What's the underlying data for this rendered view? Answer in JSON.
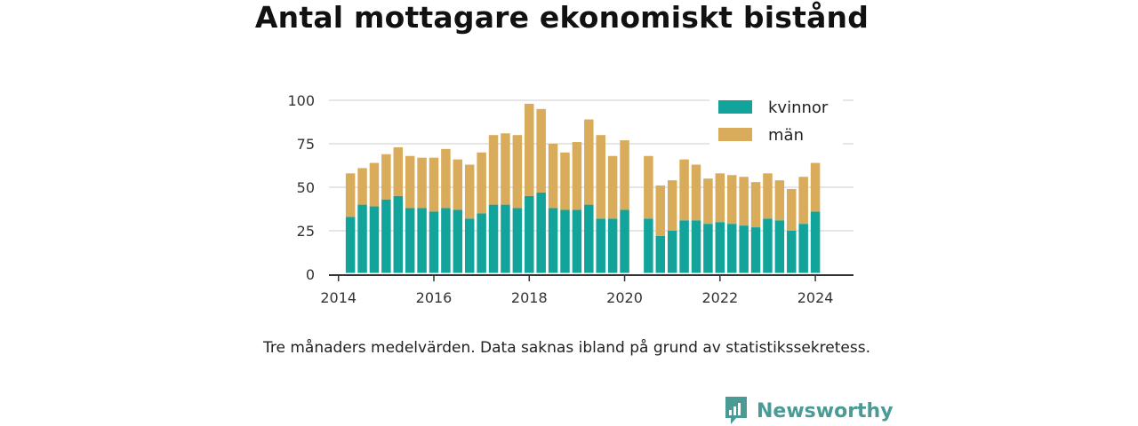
{
  "title": "Antal mottagare ekonomiskt bistånd",
  "note": "Tre månaders medelvärden. Data saknas ibland på grund av statistikssekretess.",
  "brand": {
    "name": "Newsworthy"
  },
  "colors": {
    "kvinnor": "#12a49b",
    "man": "#d8ac5a",
    "grid": "#dddddd",
    "axis": "#333333",
    "brand": "#4a9a95"
  },
  "chart_data": {
    "type": "bar",
    "stacked": true,
    "title": "Antal mottagare ekonomiskt bistånd",
    "xlabel": "",
    "ylabel": "",
    "ylim": [
      0,
      100
    ],
    "yticks": [
      0,
      25,
      50,
      75,
      100
    ],
    "xlim": [
      2013.8,
      2024.8
    ],
    "xticks": [
      "2014",
      "2016",
      "2018",
      "2020",
      "2022",
      "2024"
    ],
    "grid": true,
    "legend": "top-right",
    "x": [
      2014.25,
      2014.5,
      2014.75,
      2015.0,
      2015.25,
      2015.5,
      2015.75,
      2016.0,
      2016.25,
      2016.5,
      2016.75,
      2017.0,
      2017.25,
      2017.5,
      2017.75,
      2018.0,
      2018.25,
      2018.5,
      2018.75,
      2019.0,
      2019.25,
      2019.5,
      2019.75,
      2020.0,
      2020.5,
      2020.75,
      2021.0,
      2021.25,
      2021.5,
      2021.75,
      2022.0,
      2022.25,
      2022.5,
      2022.75,
      2023.0,
      2023.25,
      2023.5,
      2023.75,
      2024.0
    ],
    "series": [
      {
        "name": "kvinnor",
        "values": [
          33,
          40,
          39,
          43,
          45,
          38,
          38,
          36,
          38,
          37,
          32,
          35,
          40,
          40,
          38,
          45,
          47,
          38,
          37,
          37,
          40,
          32,
          32,
          37,
          32,
          22,
          25,
          31,
          31,
          29,
          30,
          29,
          28,
          27,
          32,
          31,
          25,
          29,
          36
        ]
      },
      {
        "name": "män",
        "values": [
          25,
          21,
          25,
          26,
          28,
          30,
          29,
          31,
          34,
          29,
          31,
          35,
          40,
          41,
          42,
          53,
          48,
          37,
          33,
          39,
          49,
          48,
          36,
          40,
          36,
          29,
          29,
          35,
          32,
          26,
          28,
          28,
          28,
          26,
          26,
          23,
          24,
          27,
          28
        ]
      }
    ]
  }
}
